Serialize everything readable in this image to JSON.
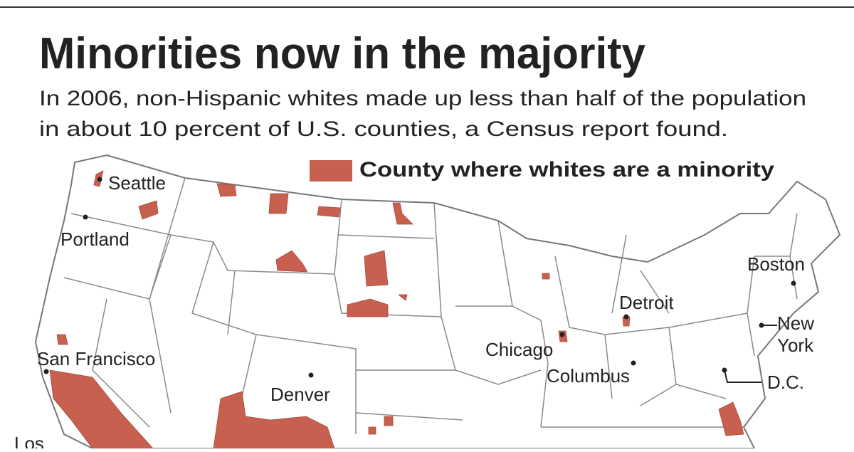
{
  "header": {
    "title": "Minorities now in the majority",
    "subtitle": [
      "In 2006, non-Hispanic whites made up less than half of the population",
      "in about 10 percent of U.S. counties, a Census report found."
    ]
  },
  "legend": {
    "label": "County where whites are a minority"
  },
  "cities": [
    {
      "label": "Seattle"
    },
    {
      "label": "Portland"
    },
    {
      "label": "San Francisco"
    },
    {
      "label": "Los"
    },
    {
      "label": "Denver"
    },
    {
      "label": "Chicago"
    },
    {
      "label": "Columbus"
    },
    {
      "label": "Detroit"
    },
    {
      "label": "Boston"
    },
    {
      "label": [
        "New",
        "York"
      ]
    },
    {
      "label": "D.C."
    }
  ]
}
